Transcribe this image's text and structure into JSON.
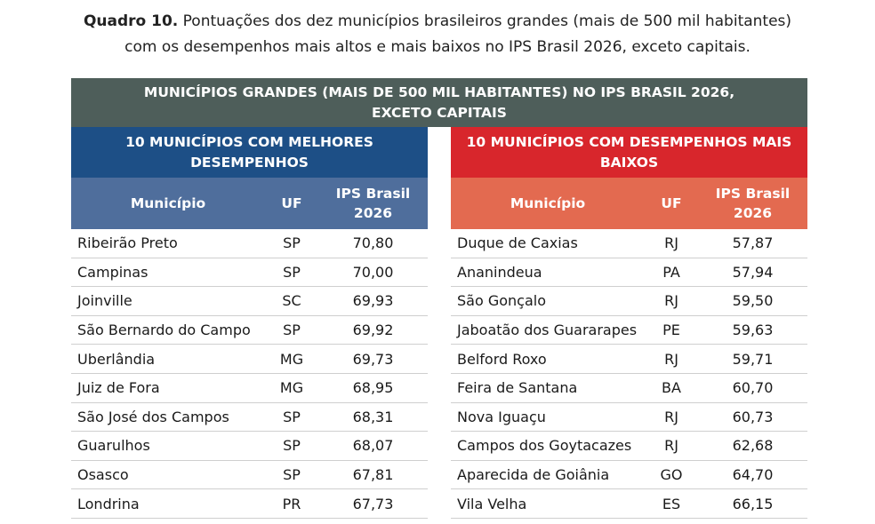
{
  "caption": {
    "label": "Quadro 10.",
    "line1": "Pontuações dos dez municípios brasileiros grandes (mais de 500 mil habitantes)",
    "line2": "com os desempenhos mais altos e mais baixos no IPS Brasil 2026, exceto capitais."
  },
  "table": {
    "title_line1": "MUNICÍPIOS GRANDES (MAIS DE 500 MIL HABITANTES) NO IPS BRASIL 2026,",
    "title_line2": "EXCETO CAPITAIS",
    "best": {
      "title_line1": "10 MUNICÍPIOS COM MELHORES",
      "title_line2": "DESEMPENHOS",
      "columns": {
        "municipio": "Município",
        "uf": "UF",
        "ips_line1": "IPS Brasil",
        "ips_line2": "2026"
      },
      "rows": [
        {
          "municipio": "Ribeirão Preto",
          "uf": "SP",
          "ips": "70,80"
        },
        {
          "municipio": "Campinas",
          "uf": "SP",
          "ips": "70,00"
        },
        {
          "municipio": "Joinville",
          "uf": "SC",
          "ips": "69,93"
        },
        {
          "municipio": "São Bernardo do Campo",
          "uf": "SP",
          "ips": "69,92"
        },
        {
          "municipio": "Uberlândia",
          "uf": "MG",
          "ips": "69,73"
        },
        {
          "municipio": "Juiz de Fora",
          "uf": "MG",
          "ips": "68,95"
        },
        {
          "municipio": "São José dos Campos",
          "uf": "SP",
          "ips": "68,31"
        },
        {
          "municipio": "Guarulhos",
          "uf": "SP",
          "ips": "68,07"
        },
        {
          "municipio": "Osasco",
          "uf": "SP",
          "ips": "67,81"
        },
        {
          "municipio": "Londrina",
          "uf": "PR",
          "ips": "67,73"
        }
      ]
    },
    "worst": {
      "title_line1": "10 MUNICÍPIOS COM DESEMPENHOS MAIS",
      "title_line2": "BAIXOS",
      "columns": {
        "municipio": "Município",
        "uf": "UF",
        "ips_line1": "IPS Brasil",
        "ips_line2": "2026"
      },
      "rows": [
        {
          "municipio": "Duque de Caxias",
          "uf": "RJ",
          "ips": "57,87"
        },
        {
          "municipio": "Ananindeua",
          "uf": "PA",
          "ips": "57,94"
        },
        {
          "municipio": "São Gonçalo",
          "uf": "RJ",
          "ips": "59,50"
        },
        {
          "municipio": "Jaboatão dos Guararapes",
          "uf": "PE",
          "ips": "59,63"
        },
        {
          "municipio": "Belford Roxo",
          "uf": "RJ",
          "ips": "59,71"
        },
        {
          "municipio": "Feira de Santana",
          "uf": "BA",
          "ips": "60,70"
        },
        {
          "municipio": "Nova Iguaçu",
          "uf": "RJ",
          "ips": "60,73"
        },
        {
          "municipio": "Campos dos Goytacazes",
          "uf": "RJ",
          "ips": "62,68"
        },
        {
          "municipio": "Aparecida de Goiânia",
          "uf": "GO",
          "ips": "64,70"
        },
        {
          "municipio": "Vila Velha",
          "uf": "ES",
          "ips": "66,15"
        }
      ]
    }
  }
}
